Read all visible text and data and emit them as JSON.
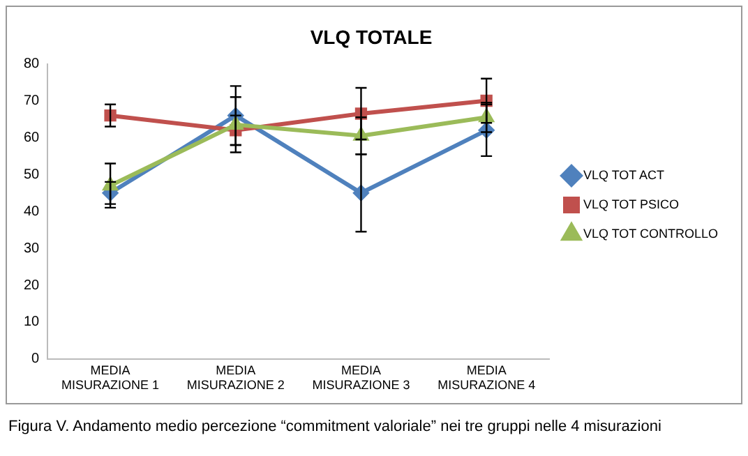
{
  "chart_data": {
    "type": "line",
    "title": "VLQ TOTALE",
    "categories": [
      "MEDIA MISURAZIONE 1",
      "MEDIA MISURAZIONE 2",
      "MEDIA MISURAZIONE 3",
      "MEDIA MISURAZIONE 4"
    ],
    "series": [
      {
        "name": "VLQ TOT ACT",
        "color": "#4f81bd",
        "marker": "diamond",
        "values": [
          45,
          66,
          45,
          62
        ],
        "errors": [
          3,
          8,
          10.5,
          7
        ]
      },
      {
        "name": "VLQ TOT PSICO",
        "color": "#c0504d",
        "marker": "square",
        "values": [
          66,
          62,
          66.5,
          70
        ],
        "errors": [
          3,
          4,
          7,
          6
        ]
      },
      {
        "name": "VLQ TOT CONTROLLO",
        "color": "#9bbb59",
        "marker": "triangle",
        "values": [
          47,
          63.5,
          60.5,
          65.5
        ],
        "errors": [
          6,
          7.5,
          5,
          4
        ]
      }
    ],
    "ylim": [
      0,
      80
    ],
    "yticks": [
      0,
      10,
      20,
      30,
      40,
      50,
      60,
      70,
      80
    ],
    "grid": false,
    "legend": "right",
    "annotations": [
      "Figura V.  Andamento medio percezione “commitment valoriale” nei tre gruppi nelle 4 misurazioni"
    ]
  }
}
